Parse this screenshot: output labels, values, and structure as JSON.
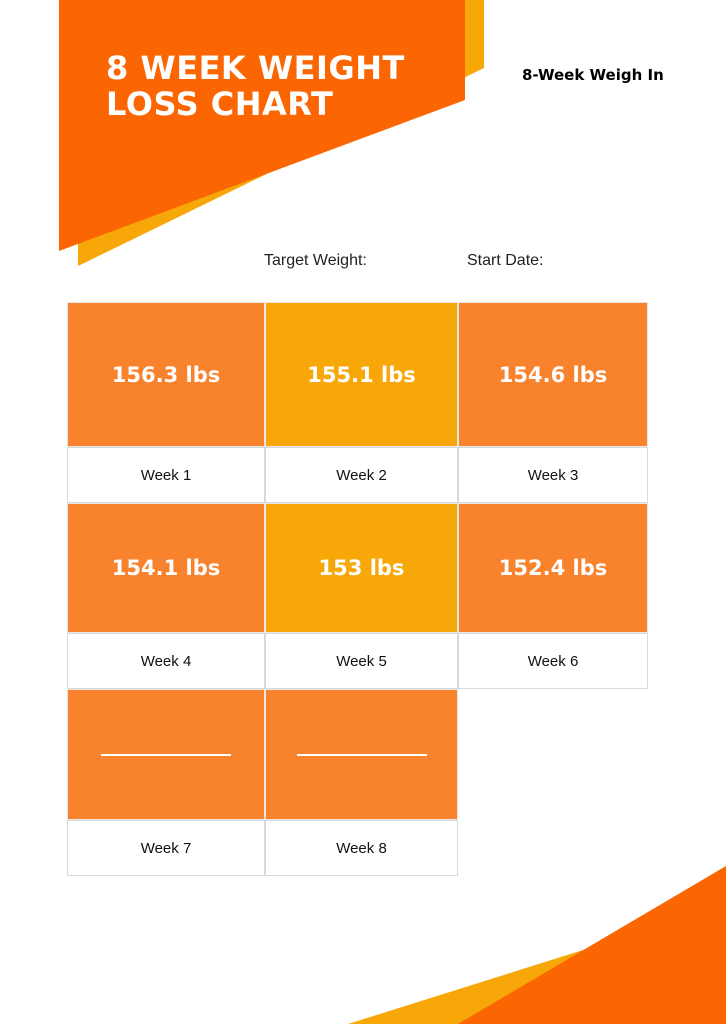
{
  "header": {
    "title_line1": "8 WEEK WEIGHT",
    "title_line2": "LOSS CHART",
    "subtitle": "8-Week Weigh In"
  },
  "fields": {
    "target_weight_label": "Target Weight:",
    "start_date_label": "Start Date:"
  },
  "colors": {
    "primary_orange": "#fb6603",
    "accent_amber": "#f7a707",
    "cell_orange": "#f9822d",
    "cell_amber": "#f7a707"
  },
  "weeks": [
    {
      "label": "Week 1",
      "value": "156.3 lbs",
      "color": "#f9822d"
    },
    {
      "label": "Week 2",
      "value": "155.1 lbs",
      "color": "#f7a707"
    },
    {
      "label": "Week 3",
      "value": "154.6 lbs",
      "color": "#f9822d"
    },
    {
      "label": "Week 4",
      "value": "154.1 lbs",
      "color": "#f9822d"
    },
    {
      "label": "Week 5",
      "value": "153 lbs",
      "color": "#f7a707"
    },
    {
      "label": "Week 6",
      "value": "152.4 lbs",
      "color": "#f9822d"
    },
    {
      "label": "Week 7",
      "value": "",
      "color": "#f9822d"
    },
    {
      "label": "Week 8",
      "value": "",
      "color": "#f9822d"
    }
  ]
}
